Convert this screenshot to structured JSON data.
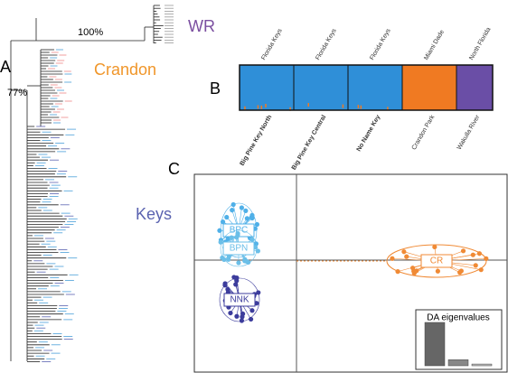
{
  "panel_a": {
    "label": "A",
    "support_top": "100%",
    "support_mid": "77%",
    "clades": [
      {
        "name": "WR",
        "color": "#7b4fa0"
      },
      {
        "name": "Crandon",
        "color": "#f0962a"
      },
      {
        "name": "Keys",
        "color": "#5b63b0"
      }
    ]
  },
  "panel_b": {
    "label": "B",
    "groups": [
      {
        "region": "Florida Keys",
        "site": "Big Pine Key North",
        "color": "#2f8fd8"
      },
      {
        "region": "Florida Keys",
        "site": "Big Pine Key Central",
        "color": "#2f8fd8"
      },
      {
        "region": "Florida Keys",
        "site": "No Name Key",
        "color": "#2f8fd8"
      },
      {
        "region": "Miami Dade",
        "site": "Crandon Park",
        "color": "#f07a22"
      },
      {
        "region": "North Florida",
        "site": "Wakulla River",
        "color": "#6a4ea6"
      }
    ]
  },
  "panel_c": {
    "label": "C",
    "clusters": [
      {
        "name": "BPC",
        "color": "#4fb0e8"
      },
      {
        "name": "BPN",
        "color": "#6bbfe8"
      },
      {
        "name": "NNK",
        "color": "#3c3c9c"
      },
      {
        "name": "CR",
        "color": "#f08a35"
      }
    ],
    "eigen_title": "DA eigenvalues",
    "eigenvalues": [
      100,
      14,
      4
    ]
  }
}
